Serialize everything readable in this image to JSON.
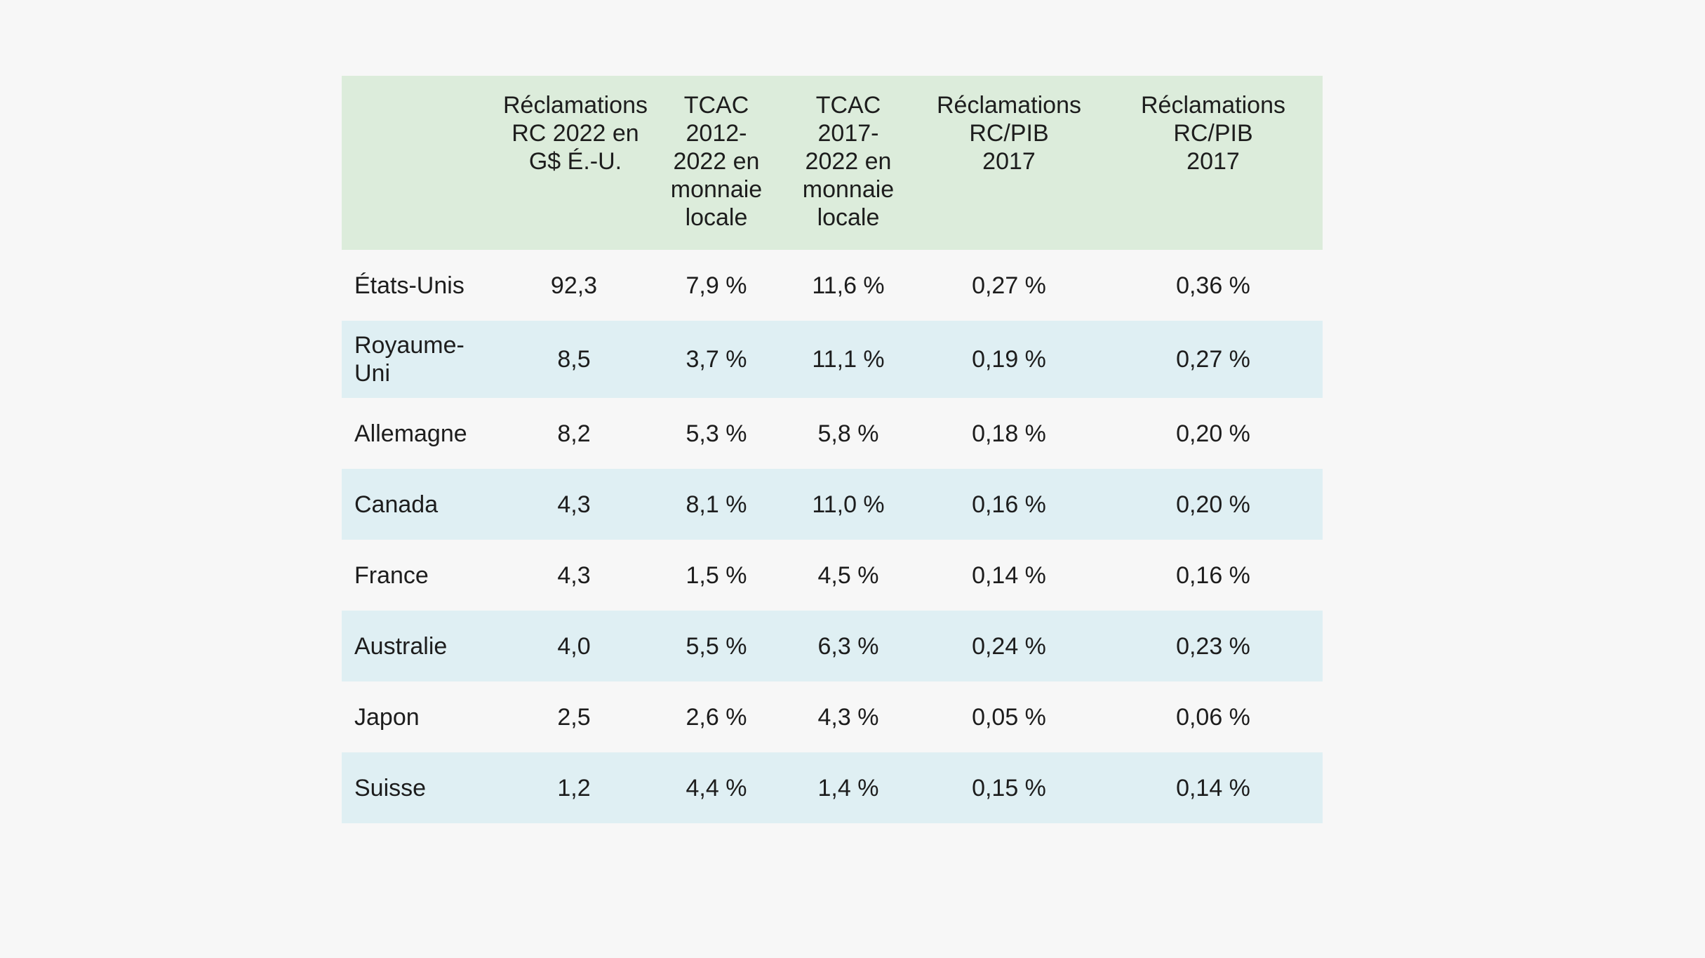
{
  "table": {
    "headers": [
      "",
      "Réclamations RC 2022 en G$ É.-U.",
      "TCAC 2012-2022 en monnaie locale",
      "TCAC 2017-2022 en monnaie locale",
      "Réclamations RC/PIB 2017",
      "Réclamations RC/PIB 2017"
    ],
    "header_lines": [
      [],
      [
        "Réclamations",
        "RC 2022 en",
        "G$ É.-U."
      ],
      [
        "TCAC",
        "2012-",
        "2022 en",
        "monnaie",
        "locale"
      ],
      [
        "TCAC",
        "2017-",
        "2022 en",
        "monnaie",
        "locale"
      ],
      [
        "Réclamations",
        "RC/PIB",
        "2017"
      ],
      [
        "Réclamations",
        "RC/PIB",
        "2017"
      ]
    ],
    "rows": [
      [
        "États-Unis",
        "92,3",
        "7,9 %",
        "11,6 %",
        "0,27 %",
        "0,36 %"
      ],
      [
        "Royaume-Uni",
        "8,5",
        "3,7 %",
        "11,1 %",
        "0,19 %",
        "0,27 %"
      ],
      [
        "Allemagne",
        "8,2",
        "5,3 %",
        "5,8 %",
        "0,18 %",
        "0,20 %"
      ],
      [
        "Canada",
        "4,3",
        "8,1 %",
        "11,0 %",
        "0,16 %",
        "0,20 %"
      ],
      [
        "France",
        "4,3",
        "1,5 %",
        "4,5 %",
        "0,14 %",
        "0,16 %"
      ],
      [
        "Australie",
        "4,0",
        "5,5 %",
        "6,3 %",
        "0,24 %",
        "0,23 %"
      ],
      [
        "Japon",
        "2,5",
        "2,6 %",
        "4,3 %",
        "0,05 %",
        "0,06 %"
      ],
      [
        "Suisse",
        "1,2",
        "4,4 %",
        "1,4 %",
        "0,15 %",
        "0,14 %"
      ]
    ]
  },
  "colors": {
    "background": "#f7f7f7",
    "header_fill": "#dcecdb",
    "row_stripe": "#dfeff3",
    "text": "#1d1d1d"
  }
}
